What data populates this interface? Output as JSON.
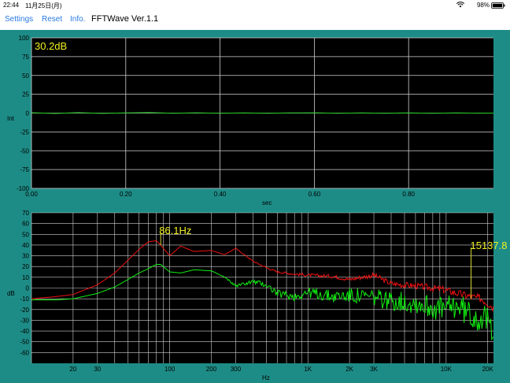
{
  "status_bar": {
    "time": "22:44",
    "date": "11月25日(月)",
    "battery": "98%",
    "icons": [
      "wifi-icon",
      "battery-icon"
    ]
  },
  "nav": {
    "settings_label": "Settings",
    "reset_label": "Reset",
    "info_label": "Info.",
    "title": "FFTWave Ver.1.1"
  },
  "colors": {
    "background": "#1e8c86",
    "plot_bg": "#000000",
    "grid": "#cfcfcf",
    "waveform": "#22cc22",
    "spectrum_red": "#ee1111",
    "spectrum_green": "#11ee11",
    "readout": "#f0f020",
    "nav_link": "#2a7ae2"
  },
  "chart_data": [
    {
      "type": "line",
      "ylabel": "Int",
      "xlabel": "sec",
      "ylim": [
        -100,
        100
      ],
      "xlim": [
        0,
        0.98
      ],
      "x_ticks": [
        "0.00",
        "0.20",
        "0.40",
        "0.60",
        "0.80"
      ],
      "x_tick_values": [
        0,
        0.2,
        0.4,
        0.6,
        0.8
      ],
      "y_ticks": [
        100,
        75,
        50,
        25,
        0,
        -25,
        -50,
        -75,
        -100
      ],
      "readout": "30.2dB",
      "series": [
        {
          "color": "#22cc22",
          "x": [
            0,
            0.05,
            0.1,
            0.15,
            0.2,
            0.25,
            0.3,
            0.35,
            0.4,
            0.45,
            0.5,
            0.55,
            0.6,
            0.65,
            0.7,
            0.75,
            0.8,
            0.85,
            0.9,
            0.95,
            0.98
          ],
          "y": [
            0.5,
            -0.5,
            0.6,
            -0.4,
            0.3,
            0.8,
            -0.3,
            0.4,
            -0.2,
            0.3,
            -0.3,
            0.2,
            0.4,
            -0.3,
            0.2,
            -0.2,
            0.3,
            -0.2,
            0.2,
            -0.1,
            0
          ]
        }
      ]
    },
    {
      "type": "line",
      "ylabel": "dB",
      "xlabel": "Hz",
      "x_scale": "log",
      "xlim": [
        10,
        22000
      ],
      "ylim": [
        -70,
        70
      ],
      "y_ticks": [
        70,
        60,
        50,
        40,
        30,
        20,
        10,
        0,
        -10,
        -20,
        -30,
        -40,
        -50,
        -60
      ],
      "x_tick_labels": [
        "20",
        "30",
        "100",
        "200",
        "300",
        "1K",
        "2K",
        "3K",
        "10K",
        "20K"
      ],
      "x_tick_values": [
        20,
        30,
        100,
        200,
        300,
        1000,
        2000,
        3000,
        10000,
        20000
      ],
      "peak_label": "86.1Hz",
      "peak_marker_hz": 86.1,
      "peak2_label": "15137.8",
      "peak2_marker_hz": 15137.8,
      "series": [
        {
          "color": "#ee1111",
          "x": [
            10,
            15,
            20,
            30,
            40,
            50,
            60,
            70,
            80,
            86,
            100,
            120,
            150,
            200,
            250,
            300,
            400,
            500,
            600,
            800,
            1000,
            1500,
            2000,
            3000,
            4000,
            6000,
            8000,
            10000,
            12000,
            15000,
            18000,
            20000,
            22000
          ],
          "y": [
            -10,
            -8,
            -6,
            3,
            14,
            26,
            36,
            43,
            44,
            40,
            30,
            39,
            34,
            35,
            31,
            37,
            25,
            19,
            15,
            13,
            12,
            11,
            8,
            12,
            4,
            2,
            0,
            -2,
            -5,
            -8,
            -10,
            -14,
            -18
          ]
        },
        {
          "color": "#11ee11",
          "x": [
            10,
            15,
            20,
            30,
            40,
            50,
            60,
            70,
            80,
            86,
            100,
            120,
            150,
            200,
            250,
            300,
            400,
            500,
            600,
            800,
            1000,
            1500,
            2000,
            3000,
            4000,
            6000,
            8000,
            10000,
            12000,
            15000,
            18000,
            20000,
            22000
          ],
          "y": [
            -11,
            -11,
            -10,
            -5,
            1,
            8,
            14,
            18,
            22,
            22,
            15,
            14,
            17,
            16,
            10,
            2,
            6,
            3,
            -5,
            -8,
            -4,
            -8,
            -7,
            -9,
            -12,
            -14,
            -18,
            -20,
            -16,
            -25,
            -28,
            -32,
            -36
          ]
        }
      ]
    }
  ]
}
